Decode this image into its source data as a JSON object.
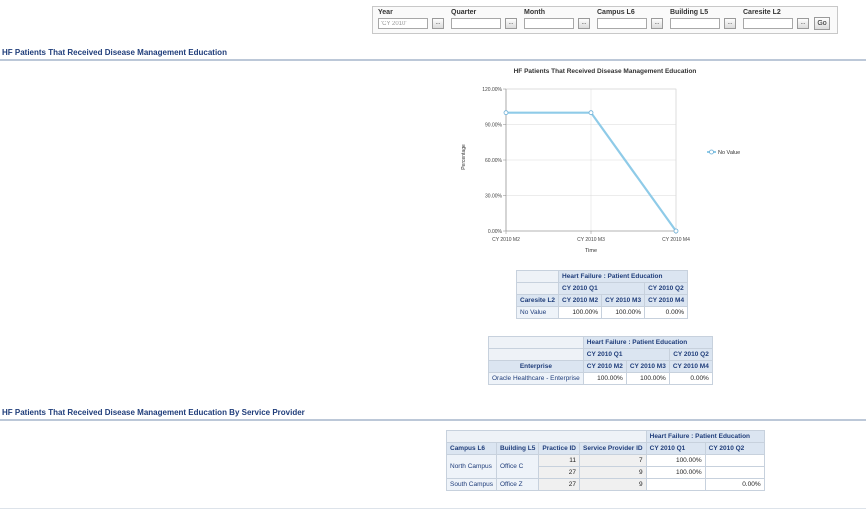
{
  "filters": {
    "items": [
      {
        "label": "Year",
        "value": "'CY 2010'"
      },
      {
        "label": "Quarter",
        "value": ""
      },
      {
        "label": "Month",
        "value": ""
      },
      {
        "label": "Campus L6",
        "value": ""
      },
      {
        "label": "Building L5",
        "value": ""
      },
      {
        "label": "Caresite L2",
        "value": ""
      }
    ],
    "browse_label": "...",
    "go_label": "Go"
  },
  "section1": {
    "title": "HF Patients That Received Disease Management Education"
  },
  "chart": {
    "title": "HF Patients That Received Disease Management Education",
    "xlabel": "Time",
    "ylabel": "Percentage",
    "y_ticks": [
      "0.00%",
      "30.00%",
      "60.00%",
      "90.00%",
      "120.00%"
    ],
    "legend": "No Value",
    "series_color": "#8fcbe8"
  },
  "chart_data": {
    "type": "line",
    "title": "HF Patients That Received Disease Management Education",
    "xlabel": "Time",
    "ylabel": "Percentage",
    "categories": [
      "CY 2010 M2",
      "CY 2010 M3",
      "CY 2010 M4"
    ],
    "series": [
      {
        "name": "No Value",
        "values": [
          100,
          100,
          0
        ]
      }
    ],
    "ylim": [
      0,
      120
    ],
    "grid": true,
    "legend_position": "right"
  },
  "table1": {
    "measure": "Heart Failure : Patient Education",
    "quarters": [
      "CY 2010 Q1",
      "CY 2010 Q2"
    ],
    "row_header": "Caresite L2",
    "months": [
      "CY 2010 M2",
      "CY 2010 M3",
      "CY 2010 M4"
    ],
    "rows": [
      {
        "label": "No Value",
        "values": [
          "100.00%",
          "100.00%",
          "0.00%"
        ]
      }
    ]
  },
  "table2": {
    "measure": "Heart Failure : Patient Education",
    "quarters": [
      "CY 2010 Q1",
      "CY 2010 Q2"
    ],
    "row_header": "Enterprise",
    "months": [
      "CY 2010 M2",
      "CY 2010 M3",
      "CY 2010 M4"
    ],
    "rows": [
      {
        "label": "Oracle Healthcare - Enterprise",
        "values": [
          "100.00%",
          "100.00%",
          "0.00%"
        ]
      }
    ]
  },
  "section2": {
    "title": "HF Patients That Received Disease Management Education By Service Provider"
  },
  "table3": {
    "measure": "Heart Failure : Patient Education",
    "headers": [
      "Campus L6",
      "Building L5",
      "Practice ID",
      "Service Provider ID"
    ],
    "quarters": [
      "CY 2010 Q1",
      "CY 2010 Q2"
    ],
    "rows": [
      {
        "campus": "North Campus",
        "building": "Office C",
        "practice": "11",
        "provider": "7",
        "q1": "100.00%",
        "q2": ""
      },
      {
        "campus": "",
        "building": "",
        "practice": "27",
        "provider": "9",
        "q1": "100.00%",
        "q2": ""
      },
      {
        "campus": "South Campus",
        "building": "Office Z",
        "practice": "27",
        "provider": "9",
        "q1": "",
        "q2": "0.00%"
      }
    ]
  }
}
